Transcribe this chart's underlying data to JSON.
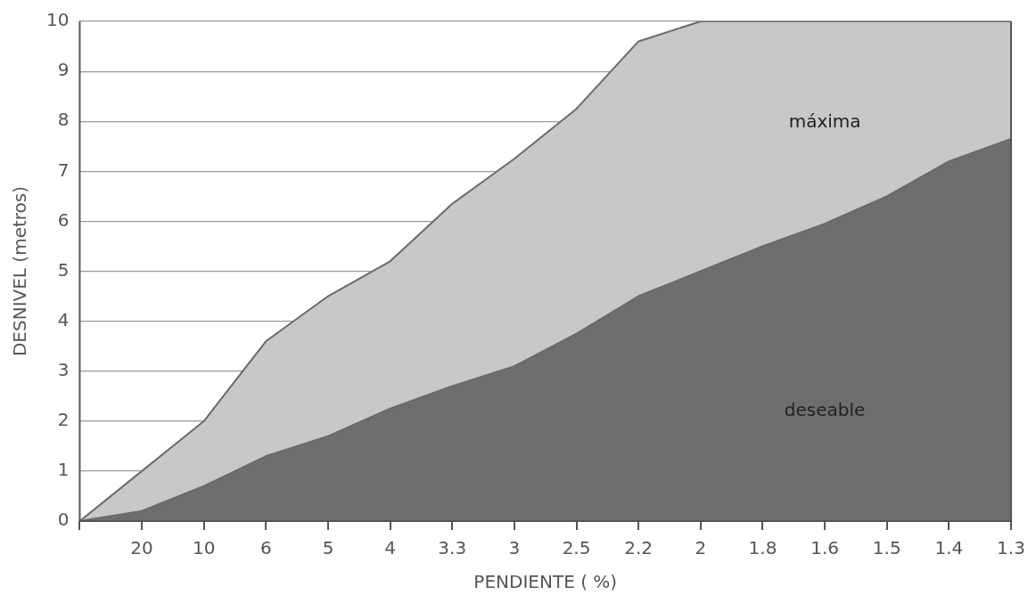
{
  "chart_data": {
    "type": "area",
    "xlabel": "PENDIENTE ( %)",
    "ylabel": "DESNIVEL (metros)",
    "categories": [
      null,
      "20",
      "10",
      "6",
      "5",
      "4",
      "3.3",
      "3",
      "2.5",
      "2.2",
      "2",
      "1.8",
      "1.6",
      "1.5",
      "1.4",
      "1.3"
    ],
    "series": [
      {
        "name": "máxima",
        "color": "#c8c8c8",
        "values": [
          0,
          1.0,
          2.0,
          3.6,
          4.5,
          5.2,
          6.35,
          7.25,
          8.25,
          9.6,
          10,
          10,
          10,
          10,
          10,
          10
        ]
      },
      {
        "name": "deseable",
        "color": "#6e6e6e",
        "values": [
          0,
          0.2,
          0.7,
          1.3,
          1.7,
          2.25,
          2.7,
          3.1,
          3.75,
          4.5,
          5.0,
          5.5,
          5.95,
          6.5,
          7.2,
          7.65
        ]
      }
    ],
    "ylim": [
      0,
      10
    ],
    "yticks": [
      0,
      1,
      2,
      3,
      4,
      5,
      6,
      7,
      8,
      9,
      10
    ],
    "grid": "y",
    "legend": false
  }
}
